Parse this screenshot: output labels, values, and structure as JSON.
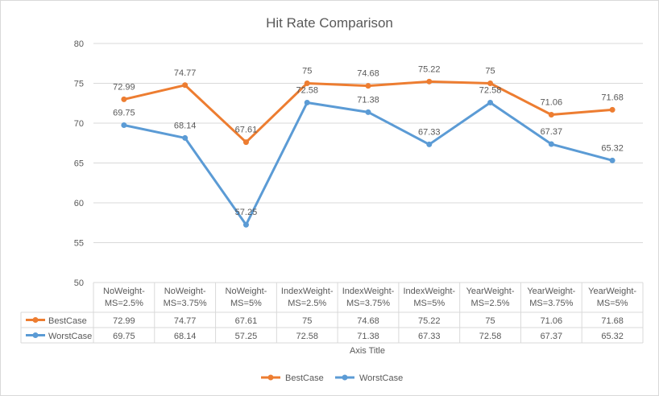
{
  "chart_data": {
    "type": "line",
    "title": "Hit Rate Comparison",
    "xlabel": "Axis Title",
    "ylabel": "",
    "ylim": [
      50,
      80
    ],
    "yticks": [
      50,
      55,
      60,
      65,
      70,
      75,
      80
    ],
    "grid": true,
    "legend_position": "bottom",
    "categories": [
      [
        "NoWeight-",
        "MS=2.5%"
      ],
      [
        "NoWeight-",
        "MS=3.75%"
      ],
      [
        "NoWeight-",
        "MS=5%"
      ],
      [
        "IndexWeight-",
        "MS=2.5%"
      ],
      [
        "IndexWeight-",
        "MS=3.75%"
      ],
      [
        "IndexWeight-",
        "MS=5%"
      ],
      [
        "YearWeight-",
        "MS=2.5%"
      ],
      [
        "YearWeight-",
        "MS=3.75%"
      ],
      [
        "YearWeight-",
        "MS=5%"
      ]
    ],
    "series": [
      {
        "name": "BestCase",
        "color": "#ED7D31",
        "values": [
          72.99,
          74.77,
          67.61,
          75,
          74.68,
          75.22,
          75,
          71.06,
          71.68
        ]
      },
      {
        "name": "WorstCase",
        "color": "#5B9BD5",
        "values": [
          69.75,
          68.14,
          57.25,
          72.58,
          71.38,
          67.33,
          72.58,
          67.37,
          65.32
        ]
      }
    ]
  }
}
